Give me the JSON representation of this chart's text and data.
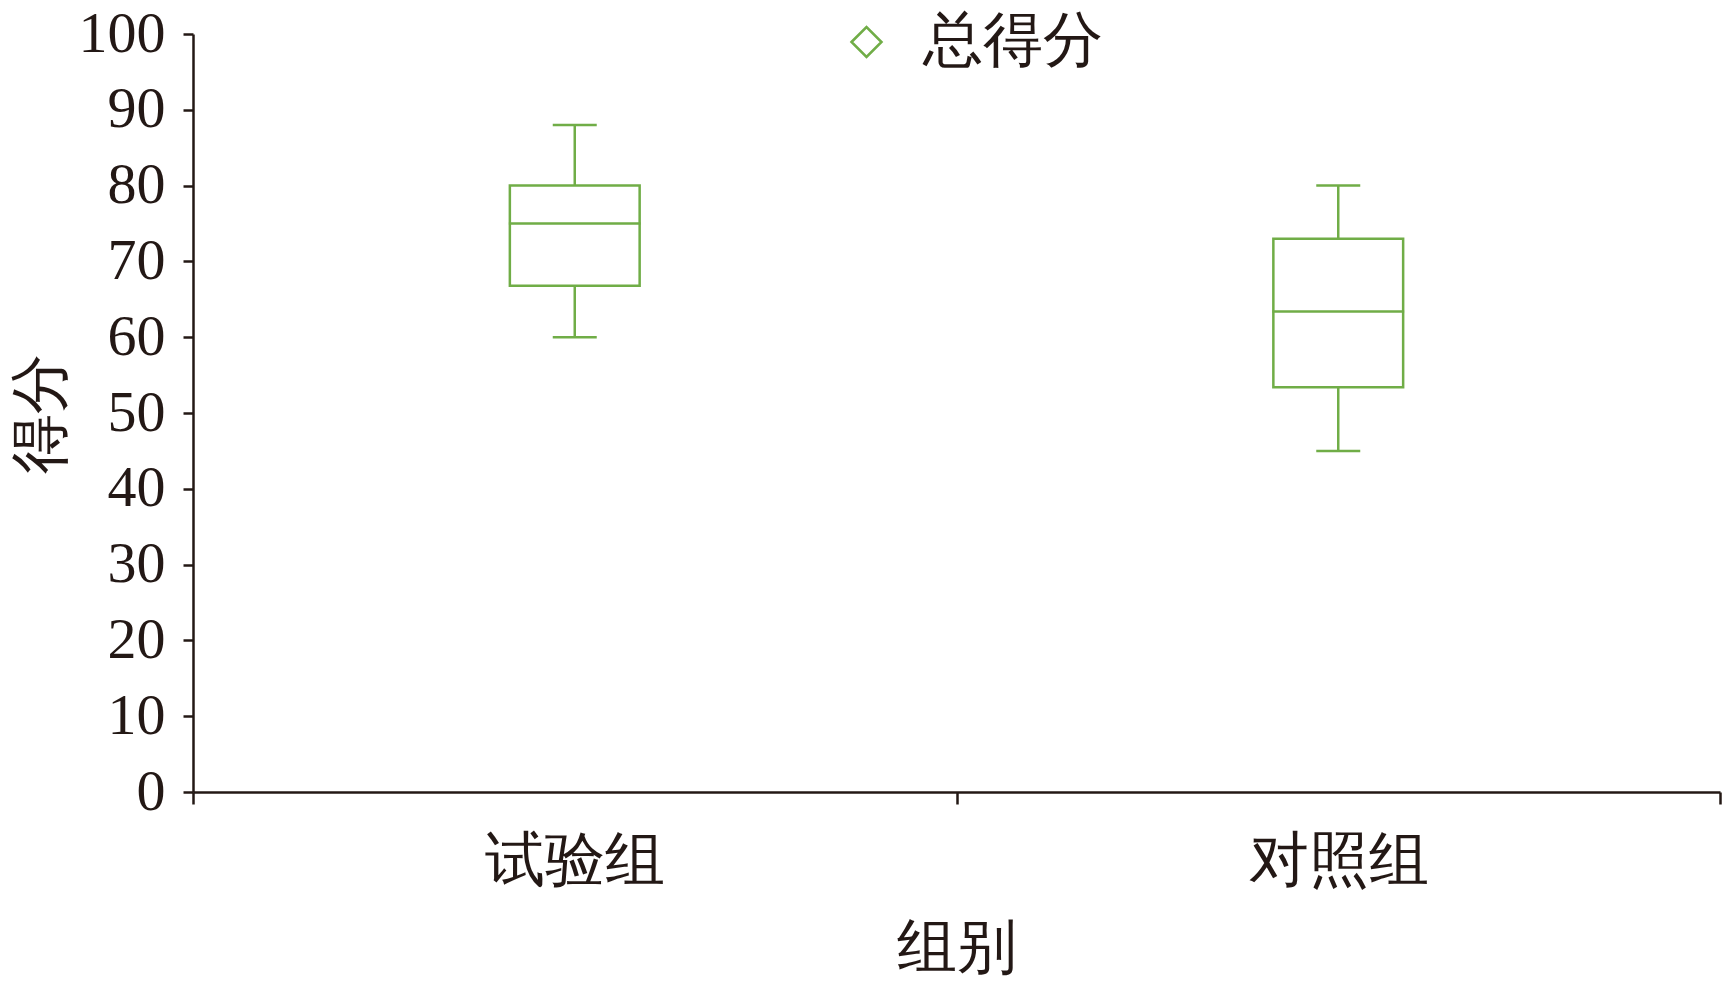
{
  "chart_data": {
    "type": "box",
    "categories": [
      "试验组",
      "对照组"
    ],
    "xlabel": "组别",
    "ylabel": "得分",
    "ylim": [
      0,
      100
    ],
    "yticks": [
      0,
      10,
      20,
      30,
      40,
      50,
      60,
      70,
      80,
      90,
      100
    ],
    "grid": false,
    "legend": "top",
    "series": [
      {
        "name": "总得分",
        "color": "#70ad47",
        "boxes": [
          {
            "low": 60,
            "q1": 66.8,
            "median": 75,
            "q3": 80,
            "high": 88
          },
          {
            "low": 45,
            "q1": 53.4,
            "median": 63.4,
            "q3": 73,
            "high": 80
          }
        ]
      }
    ]
  }
}
